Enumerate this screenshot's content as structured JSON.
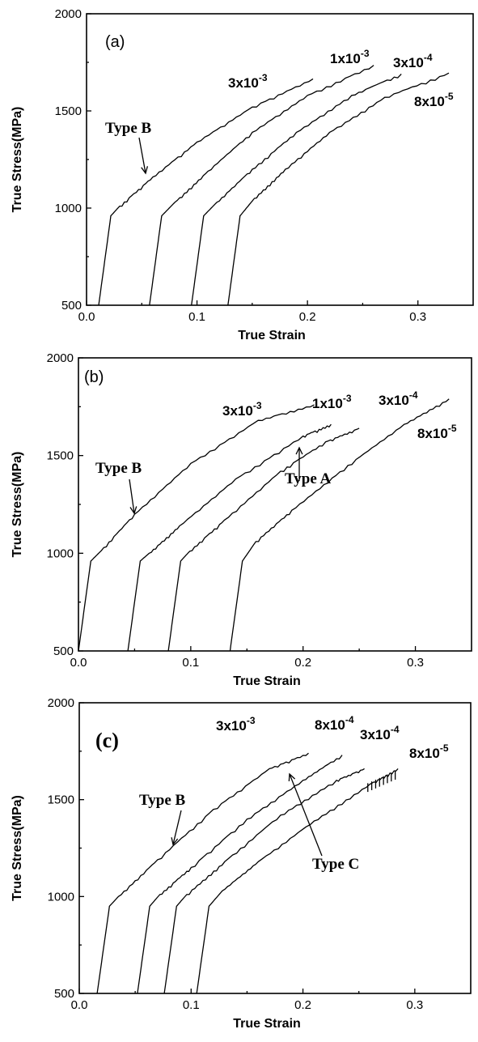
{
  "chart_data": [
    {
      "type": "line",
      "panel_label": "(a)",
      "xlabel": "True Strain",
      "ylabel": "True Stress(MPa)",
      "xlim": [
        0.0,
        0.35
      ],
      "ylim": [
        500,
        2000
      ],
      "xticks": [
        "0.0",
        "0.1",
        "0.2",
        "0.3"
      ],
      "yticks": [
        "500",
        "1000",
        "1500",
        "2000"
      ],
      "series": [
        {
          "base": "3x10",
          "exp": "-3",
          "x": [
            0.011,
            0.022,
            0.03,
            0.06,
            0.1,
            0.15,
            0.205
          ],
          "y": [
            500,
            960,
            1010,
            1160,
            1340,
            1520,
            1665
          ]
        },
        {
          "base": "1x10",
          "exp": "-3",
          "x": [
            0.057,
            0.068,
            0.08,
            0.11,
            0.15,
            0.2,
            0.26
          ],
          "y": [
            500,
            960,
            1030,
            1190,
            1390,
            1580,
            1735
          ]
        },
        {
          "base": "3x10",
          "exp": "-4",
          "x": [
            0.095,
            0.106,
            0.118,
            0.15,
            0.19,
            0.24,
            0.285
          ],
          "y": [
            500,
            960,
            1030,
            1200,
            1390,
            1580,
            1690
          ]
        },
        {
          "base": "8x10",
          "exp": "-5",
          "x": [
            0.128,
            0.139,
            0.152,
            0.18,
            0.22,
            0.27,
            0.328
          ],
          "y": [
            500,
            960,
            1050,
            1200,
            1390,
            1570,
            1695
          ]
        }
      ],
      "annotations": [
        {
          "text": "Type B"
        }
      ]
    },
    {
      "type": "line",
      "panel_label": "(b)",
      "xlabel": "True Strain",
      "ylabel": "True Stress(MPa)",
      "xlim": [
        0.0,
        0.35
      ],
      "ylim": [
        500,
        2000
      ],
      "xticks": [
        "0.0",
        "0.1",
        "0.2",
        "0.3"
      ],
      "yticks": [
        "500",
        "1000",
        "1500",
        "2000"
      ],
      "series": [
        {
          "base": "3x10",
          "exp": "-3",
          "x": [
            0.0,
            0.011,
            0.018,
            0.05,
            0.1,
            0.16,
            0.21
          ],
          "y": [
            500,
            960,
            1000,
            1200,
            1460,
            1680,
            1760
          ]
        },
        {
          "base": "1x10",
          "exp": "-3",
          "x": [
            0.044,
            0.055,
            0.063,
            0.09,
            0.14,
            0.2,
            0.225
          ],
          "y": [
            500,
            960,
            1000,
            1140,
            1380,
            1600,
            1660
          ]
        },
        {
          "base": "3x10",
          "exp": "-4",
          "x": [
            0.08,
            0.091,
            0.099,
            0.13,
            0.18,
            0.22,
            0.25
          ],
          "y": [
            500,
            960,
            1010,
            1170,
            1420,
            1570,
            1640
          ]
        },
        {
          "base": "8x10",
          "exp": "-5",
          "x": [
            0.135,
            0.146,
            0.158,
            0.19,
            0.24,
            0.29,
            0.33
          ],
          "y": [
            500,
            960,
            1060,
            1220,
            1450,
            1660,
            1790
          ]
        }
      ],
      "annotations": [
        {
          "text": "Type B"
        },
        {
          "text": "Type A"
        }
      ]
    },
    {
      "type": "line",
      "panel_label": "(c)",
      "xlabel": "True Strain",
      "ylabel": "True Stress(MPa)",
      "xlim": [
        0.0,
        0.35
      ],
      "ylim": [
        500,
        2000
      ],
      "xticks": [
        "0.0",
        "0.1",
        "0.2",
        "0.3"
      ],
      "yticks": [
        "500",
        "1000",
        "1500",
        "2000"
      ],
      "series": [
        {
          "base": "3x10",
          "exp": "-3",
          "x": [
            0.016,
            0.027,
            0.035,
            0.07,
            0.12,
            0.17,
            0.205
          ],
          "y": [
            500,
            950,
            1000,
            1190,
            1450,
            1660,
            1740
          ]
        },
        {
          "base": "8x10",
          "exp": "-4",
          "x": [
            0.052,
            0.063,
            0.072,
            0.1,
            0.15,
            0.2,
            0.235
          ],
          "y": [
            500,
            950,
            1010,
            1150,
            1400,
            1600,
            1730
          ]
        },
        {
          "base": "3x10",
          "exp": "-4",
          "x": [
            0.076,
            0.087,
            0.096,
            0.13,
            0.18,
            0.23,
            0.255
          ],
          "y": [
            500,
            950,
            1010,
            1180,
            1420,
            1600,
            1660
          ]
        },
        {
          "base": "8x10",
          "exp": "-5",
          "x": [
            0.105,
            0.116,
            0.128,
            0.16,
            0.21,
            0.26,
            0.285
          ],
          "y": [
            500,
            950,
            1030,
            1180,
            1390,
            1580,
            1660
          ]
        }
      ],
      "annotations": [
        {
          "text": "Type B"
        },
        {
          "text": "Type C"
        }
      ]
    }
  ]
}
